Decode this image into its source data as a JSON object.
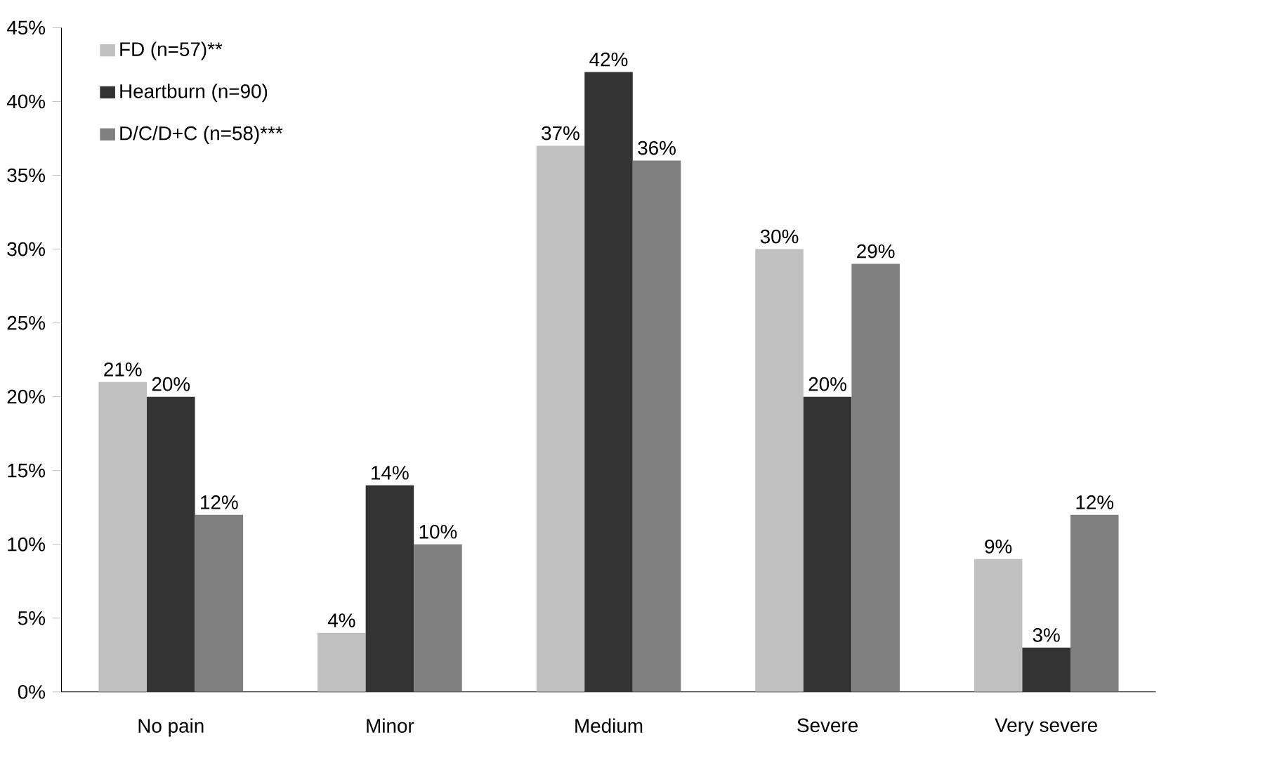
{
  "chart_data": {
    "type": "bar",
    "categories": [
      "No pain",
      "Minor",
      "Medium",
      "Severe",
      "Very severe"
    ],
    "series": [
      {
        "name": "FD (n=57)**",
        "color": "#c0c0c0",
        "values": [
          21,
          4,
          37,
          30,
          9
        ],
        "value_labels": [
          "21%",
          "4%",
          "37%",
          "30%",
          "9%"
        ]
      },
      {
        "name": "Heartburn (n=90)",
        "color": "#333333",
        "values": [
          20,
          14,
          42,
          20,
          3
        ],
        "value_labels": [
          "20%",
          "14%",
          "42%",
          "20%",
          "3%"
        ]
      },
      {
        "name": "D/C/D+C (n=58)***",
        "color": "#808080",
        "values": [
          12,
          10,
          36,
          29,
          12
        ],
        "value_labels": [
          "12%",
          "10%",
          "36%",
          "29%",
          "12%"
        ]
      }
    ],
    "ylim": [
      0,
      45
    ],
    "yticks": [
      {
        "value": 0,
        "label": "0%"
      },
      {
        "value": 5,
        "label": "5%"
      },
      {
        "value": 10,
        "label": "10%"
      },
      {
        "value": 15,
        "label": "15%"
      },
      {
        "value": 20,
        "label": "20%"
      },
      {
        "value": 25,
        "label": "25%"
      },
      {
        "value": 30,
        "label": "30%"
      },
      {
        "value": 35,
        "label": "35%"
      },
      {
        "value": 40,
        "label": "40%"
      },
      {
        "value": 45,
        "label": "45%"
      }
    ],
    "grid": false,
    "legend": "top left"
  }
}
